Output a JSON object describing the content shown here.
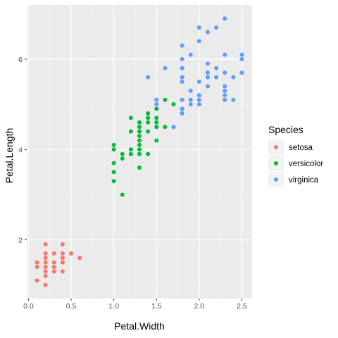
{
  "chart_data": {
    "type": "scatter",
    "title": "",
    "xlabel": "Petal.Width",
    "ylabel": "Petal.Length",
    "xlim": [
      -0.02,
      2.62
    ],
    "ylim": [
      0.7,
      7.2
    ],
    "x_ticks": [
      0.0,
      0.5,
      1.0,
      1.5,
      2.0,
      2.5
    ],
    "x_tick_labels": [
      "0.0",
      "0.5",
      "1.0",
      "1.5",
      "2.0",
      "2.5"
    ],
    "y_ticks": [
      2,
      4,
      6
    ],
    "y_tick_labels": [
      "2",
      "4",
      "6"
    ],
    "grid": true,
    "legend": {
      "title": "Species",
      "placement": "right"
    },
    "series": [
      {
        "name": "setosa",
        "color": "#F8766D",
        "points": [
          [
            0.1,
            1.1
          ],
          [
            0.1,
            1.4
          ],
          [
            0.1,
            1.5
          ],
          [
            0.2,
            1.0
          ],
          [
            0.2,
            1.2
          ],
          [
            0.2,
            1.3
          ],
          [
            0.2,
            1.4
          ],
          [
            0.2,
            1.5
          ],
          [
            0.2,
            1.6
          ],
          [
            0.2,
            1.7
          ],
          [
            0.2,
            1.9
          ],
          [
            0.3,
            1.3
          ],
          [
            0.3,
            1.4
          ],
          [
            0.3,
            1.5
          ],
          [
            0.3,
            1.7
          ],
          [
            0.4,
            1.3
          ],
          [
            0.4,
            1.5
          ],
          [
            0.4,
            1.6
          ],
          [
            0.4,
            1.7
          ],
          [
            0.4,
            1.9
          ],
          [
            0.5,
            1.7
          ],
          [
            0.6,
            1.6
          ]
        ]
      },
      {
        "name": "versicolor",
        "color": "#00BA38",
        "points": [
          [
            1.0,
            3.3
          ],
          [
            1.0,
            3.5
          ],
          [
            1.0,
            3.7
          ],
          [
            1.0,
            4.0
          ],
          [
            1.0,
            4.1
          ],
          [
            1.1,
            3.0
          ],
          [
            1.1,
            3.8
          ],
          [
            1.1,
            3.9
          ],
          [
            1.2,
            3.9
          ],
          [
            1.2,
            4.0
          ],
          [
            1.2,
            4.4
          ],
          [
            1.2,
            4.7
          ],
          [
            1.3,
            3.6
          ],
          [
            1.3,
            3.9
          ],
          [
            1.3,
            4.0
          ],
          [
            1.3,
            4.1
          ],
          [
            1.3,
            4.2
          ],
          [
            1.3,
            4.3
          ],
          [
            1.3,
            4.4
          ],
          [
            1.3,
            4.5
          ],
          [
            1.3,
            4.6
          ],
          [
            1.4,
            3.9
          ],
          [
            1.4,
            4.4
          ],
          [
            1.4,
            4.6
          ],
          [
            1.4,
            4.7
          ],
          [
            1.4,
            4.8
          ],
          [
            1.5,
            4.2
          ],
          [
            1.5,
            4.5
          ],
          [
            1.5,
            4.6
          ],
          [
            1.5,
            4.7
          ],
          [
            1.5,
            4.9
          ],
          [
            1.6,
            4.5
          ],
          [
            1.6,
            5.1
          ],
          [
            1.7,
            5.0
          ],
          [
            1.8,
            4.8
          ]
        ]
      },
      {
        "name": "virginica",
        "color": "#619CFF",
        "points": [
          [
            1.4,
            5.6
          ],
          [
            1.5,
            5.0
          ],
          [
            1.5,
            5.1
          ],
          [
            1.6,
            5.8
          ],
          [
            1.7,
            4.5
          ],
          [
            1.8,
            4.8
          ],
          [
            1.8,
            4.9
          ],
          [
            1.8,
            5.1
          ],
          [
            1.8,
            5.5
          ],
          [
            1.8,
            5.6
          ],
          [
            1.8,
            5.8
          ],
          [
            1.8,
            6.0
          ],
          [
            1.8,
            6.3
          ],
          [
            1.9,
            5.0
          ],
          [
            1.9,
            5.1
          ],
          [
            1.9,
            5.3
          ],
          [
            1.9,
            6.1
          ],
          [
            2.0,
            5.0
          ],
          [
            2.0,
            5.1
          ],
          [
            2.0,
            5.2
          ],
          [
            2.0,
            5.5
          ],
          [
            2.0,
            6.4
          ],
          [
            2.0,
            6.7
          ],
          [
            2.1,
            5.4
          ],
          [
            2.1,
            5.6
          ],
          [
            2.1,
            5.7
          ],
          [
            2.1,
            5.9
          ],
          [
            2.1,
            6.6
          ],
          [
            2.2,
            5.6
          ],
          [
            2.2,
            5.8
          ],
          [
            2.2,
            6.7
          ],
          [
            2.3,
            5.1
          ],
          [
            2.3,
            5.2
          ],
          [
            2.3,
            5.3
          ],
          [
            2.3,
            5.4
          ],
          [
            2.3,
            5.7
          ],
          [
            2.3,
            6.1
          ],
          [
            2.3,
            6.9
          ],
          [
            2.4,
            5.1
          ],
          [
            2.4,
            5.6
          ],
          [
            2.5,
            5.7
          ],
          [
            2.5,
            6.0
          ],
          [
            2.5,
            6.1
          ]
        ]
      }
    ]
  }
}
